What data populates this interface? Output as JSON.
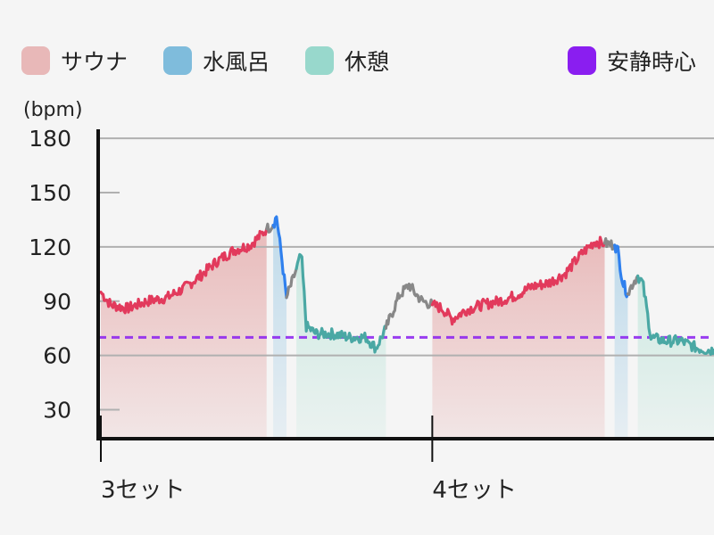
{
  "legend": [
    {
      "label": "サウナ",
      "color": "#e8b8b8"
    },
    {
      "label": "水風呂",
      "color": "#7fbcdc"
    },
    {
      "label": "休憩",
      "color": "#98d8cc"
    },
    {
      "label": "安静時心",
      "color": "#8a1ef0"
    }
  ],
  "colors": {
    "sauna_line": "#e23a5c",
    "sauna_fill": "#e8b8b8",
    "bath_line": "#2f80ee",
    "bath_fill": "#bcd9ea",
    "rest_line": "#4aa8a4",
    "rest_fill": "#cce9e1",
    "transition_line": "#888888",
    "resting_line": "#8a1ef0"
  },
  "chart_data": {
    "type": "line",
    "ylabel": "(bpm)",
    "ylim": [
      14,
      185
    ],
    "yticks": [
      30,
      60,
      90,
      120,
      150,
      180
    ],
    "major_gridlines": [
      60,
      120,
      180
    ],
    "xlim": [
      0,
      18.5
    ],
    "x_ticks": [
      {
        "x": 0,
        "label": "3セット"
      },
      {
        "x": 10,
        "label": "4セット"
      }
    ],
    "resting_hr": 70,
    "segments": [
      {
        "phase": "sauna",
        "x_start": 0,
        "x_end": 5.0,
        "x": [
          0,
          0.3,
          0.8,
          1.4,
          2.0,
          2.5,
          3.0,
          3.5,
          4.0,
          4.5,
          4.8,
          5.0
        ],
        "y": [
          95,
          88,
          86,
          90,
          92,
          97,
          104,
          112,
          118,
          121,
          126,
          130
        ]
      },
      {
        "phase": "transition",
        "x_start": 5.0,
        "x_end": 5.2,
        "x": [
          5.0,
          5.2
        ],
        "y": [
          130,
          132
        ]
      },
      {
        "phase": "bath",
        "x_start": 5.2,
        "x_end": 5.6,
        "x": [
          5.2,
          5.3,
          5.45,
          5.6
        ],
        "y": [
          132,
          137,
          115,
          92
        ]
      },
      {
        "phase": "transition",
        "x_start": 5.6,
        "x_end": 5.9,
        "x": [
          5.6,
          5.8,
          5.9
        ],
        "y": [
          92,
          102,
          108
        ]
      },
      {
        "phase": "rest",
        "x_start": 5.9,
        "x_end": 8.6,
        "x": [
          5.9,
          6.05,
          6.2,
          6.5,
          7.0,
          7.5,
          8.0,
          8.3,
          8.6
        ],
        "y": [
          108,
          116,
          76,
          72,
          72,
          70,
          70,
          64,
          75
        ]
      },
      {
        "phase": "transition",
        "x_start": 8.6,
        "x_end": 10,
        "x": [
          8.6,
          8.8,
          9.0,
          9.3,
          9.5,
          9.7,
          10.0
        ],
        "y": [
          75,
          84,
          93,
          99,
          94,
          90,
          88
        ]
      },
      {
        "phase": "sauna",
        "x_start": 10,
        "x_end": 15.2,
        "x": [
          10.0,
          10.3,
          10.6,
          11.0,
          11.5,
          12.0,
          12.5,
          13.0,
          13.5,
          14.0,
          14.5,
          14.9,
          15.2
        ],
        "y": [
          88,
          86,
          80,
          85,
          88,
          90,
          93,
          98,
          100,
          105,
          116,
          123,
          122
        ]
      },
      {
        "phase": "transition",
        "x_start": 15.2,
        "x_end": 15.5,
        "x": [
          15.2,
          15.5
        ],
        "y": [
          122,
          121
        ]
      },
      {
        "phase": "bath",
        "x_start": 15.5,
        "x_end": 15.9,
        "x": [
          15.5,
          15.6,
          15.75,
          15.9
        ],
        "y": [
          121,
          118,
          100,
          94
        ]
      },
      {
        "phase": "transition",
        "x_start": 15.9,
        "x_end": 16.2,
        "x": [
          15.9,
          16.05,
          16.2
        ],
        "y": [
          94,
          100,
          104
        ]
      },
      {
        "phase": "rest",
        "x_start": 16.2,
        "x_end": 18.5,
        "x": [
          16.2,
          16.35,
          16.6,
          17.0,
          17.5,
          18.0,
          18.3,
          18.5
        ],
        "y": [
          104,
          100,
          70,
          68,
          68,
          64,
          63,
          63
        ]
      }
    ]
  }
}
